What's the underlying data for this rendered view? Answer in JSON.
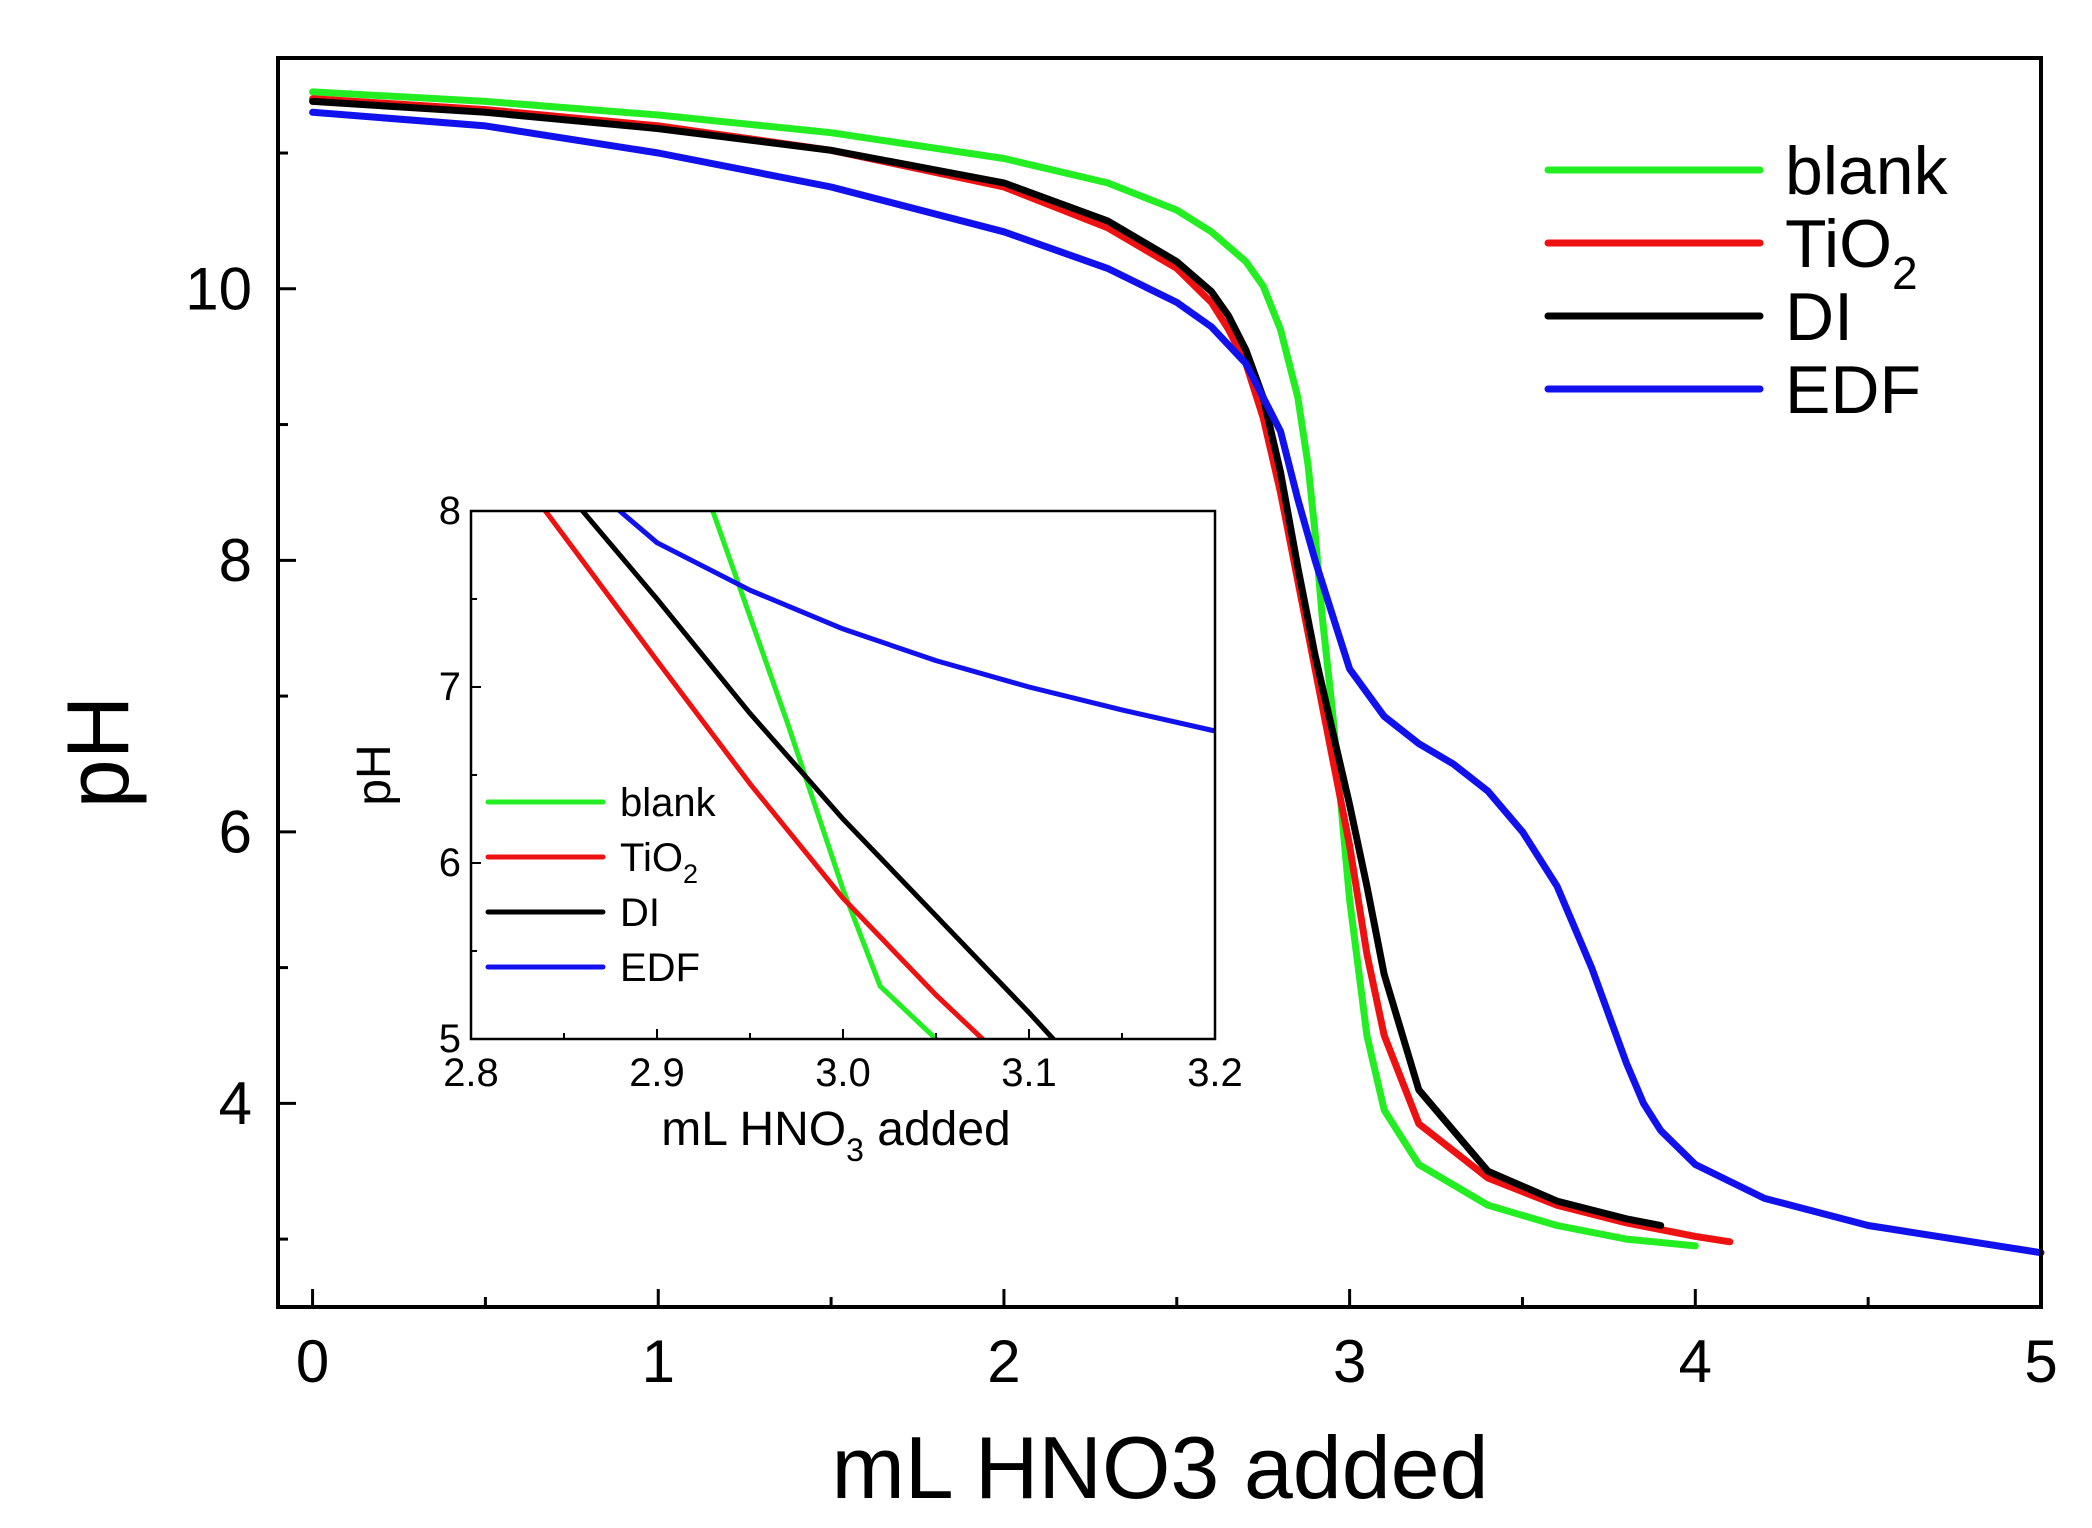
{
  "chart_data": [
    {
      "id": "main",
      "type": "line",
      "xlabel": "mL HNO3 added",
      "ylabel": "pH",
      "xlim": [
        -0.1,
        5.0
      ],
      "ylim": [
        2.5,
        11.7
      ],
      "xticks": [
        0,
        1,
        2,
        3,
        4,
        5
      ],
      "xtick_labels": [
        "0",
        "1",
        "2",
        "3",
        "4",
        "5"
      ],
      "xticks_minor": [
        0.5,
        1.5,
        2.5,
        3.5,
        4.5
      ],
      "yticks": [
        4,
        6,
        8,
        10
      ],
      "ytick_labels": [
        "4",
        "6",
        "8",
        "10"
      ],
      "yticks_minor": [
        3,
        5,
        7,
        9,
        11
      ],
      "legend_position": "top-right",
      "series": [
        {
          "name": "blank",
          "label_main": "blank",
          "label_sub": "",
          "color": "#22ee22",
          "x": [
            0,
            0.5,
            1.0,
            1.5,
            2.0,
            2.3,
            2.5,
            2.6,
            2.7,
            2.75,
            2.8,
            2.85,
            2.88,
            2.9,
            2.92,
            2.95,
            3.0,
            3.05,
            3.1,
            3.2,
            3.4,
            3.6,
            3.8,
            4.0
          ],
          "y": [
            11.45,
            11.38,
            11.28,
            11.15,
            10.96,
            10.78,
            10.58,
            10.42,
            10.2,
            10.02,
            9.7,
            9.2,
            8.7,
            8.2,
            7.6,
            6.9,
            5.5,
            4.5,
            3.95,
            3.55,
            3.25,
            3.1,
            3.0,
            2.95
          ]
        },
        {
          "name": "TiO2",
          "label_main": "TiO",
          "label_sub": "2",
          "color": "#ee1111",
          "x": [
            0,
            0.5,
            1.0,
            1.5,
            2.0,
            2.3,
            2.5,
            2.6,
            2.65,
            2.7,
            2.75,
            2.8,
            2.85,
            2.9,
            2.95,
            3.0,
            3.05,
            3.1,
            3.2,
            3.4,
            3.6,
            3.8,
            4.0,
            4.1
          ],
          "y": [
            11.4,
            11.32,
            11.2,
            11.02,
            10.75,
            10.45,
            10.15,
            9.9,
            9.7,
            9.45,
            9.05,
            8.5,
            7.85,
            7.2,
            6.55,
            5.9,
            5.1,
            4.5,
            3.85,
            3.45,
            3.25,
            3.12,
            3.02,
            2.98
          ]
        },
        {
          "name": "DI",
          "label_main": "DI",
          "label_sub": "",
          "color": "#000000",
          "x": [
            0,
            0.5,
            1.0,
            1.5,
            2.0,
            2.3,
            2.5,
            2.6,
            2.65,
            2.7,
            2.75,
            2.8,
            2.85,
            2.9,
            2.95,
            3.0,
            3.05,
            3.1,
            3.2,
            3.4,
            3.6,
            3.8,
            3.9
          ],
          "y": [
            11.38,
            11.3,
            11.18,
            11.02,
            10.78,
            10.5,
            10.2,
            9.98,
            9.8,
            9.55,
            9.2,
            8.65,
            7.95,
            7.3,
            6.75,
            6.2,
            5.6,
            4.95,
            4.1,
            3.5,
            3.28,
            3.15,
            3.1
          ]
        },
        {
          "name": "EDF",
          "label_main": "EDF",
          "label_sub": "",
          "color": "#1111ee",
          "x": [
            0,
            0.5,
            1.0,
            1.5,
            2.0,
            2.3,
            2.5,
            2.6,
            2.7,
            2.8,
            2.85,
            2.9,
            2.95,
            3.0,
            3.1,
            3.2,
            3.3,
            3.4,
            3.5,
            3.6,
            3.7,
            3.75,
            3.8,
            3.85,
            3.9,
            4.0,
            4.2,
            4.5,
            4.8,
            5.0
          ],
          "y": [
            11.3,
            11.2,
            11.0,
            10.75,
            10.42,
            10.15,
            9.9,
            9.72,
            9.45,
            8.95,
            8.45,
            8.0,
            7.6,
            7.2,
            6.85,
            6.65,
            6.5,
            6.3,
            6.0,
            5.6,
            5.0,
            4.65,
            4.3,
            4.0,
            3.8,
            3.55,
            3.3,
            3.1,
            2.98,
            2.9
          ]
        }
      ]
    },
    {
      "id": "inset",
      "type": "line",
      "xlabel_main": "mL HNO",
      "xlabel_sub": "3",
      "xlabel_tail": " added",
      "ylabel": "pH",
      "xlim": [
        2.8,
        3.2
      ],
      "ylim": [
        5,
        8
      ],
      "xticks": [
        2.8,
        2.9,
        3.0,
        3.1,
        3.2
      ],
      "xtick_labels": [
        "2.8",
        "2.9",
        "3.0",
        "3.1",
        "3.2"
      ],
      "xticks_minor": [
        2.85,
        2.95,
        3.05,
        3.15
      ],
      "yticks": [
        5,
        6,
        7,
        8
      ],
      "ytick_labels": [
        "5",
        "6",
        "7",
        "8"
      ],
      "yticks_minor": [
        5.5,
        6.5,
        7.5
      ],
      "legend_position": "bottom-left",
      "series": [
        {
          "name": "blank",
          "label_main": "blank",
          "label_sub": "",
          "color": "#22ee22",
          "x": [
            2.93,
            2.97,
            3.0,
            3.02,
            3.05
          ],
          "y": [
            8.0,
            6.8,
            5.85,
            5.3,
            5.0
          ]
        },
        {
          "name": "TiO2",
          "label_main": "TiO",
          "label_sub": "2",
          "color": "#ee1111",
          "x": [
            2.84,
            2.9,
            2.95,
            3.0,
            3.05,
            3.075
          ],
          "y": [
            8.0,
            7.15,
            6.45,
            5.8,
            5.25,
            5.0
          ]
        },
        {
          "name": "DI",
          "label_main": "DI",
          "label_sub": "",
          "color": "#000000",
          "x": [
            2.86,
            2.9,
            2.95,
            3.0,
            3.05,
            3.1,
            3.113
          ],
          "y": [
            8.0,
            7.5,
            6.85,
            6.25,
            5.7,
            5.15,
            5.0
          ]
        },
        {
          "name": "EDF",
          "label_main": "EDF",
          "label_sub": "",
          "color": "#1111ee",
          "x": [
            2.88,
            2.9,
            2.95,
            3.0,
            3.05,
            3.1,
            3.15,
            3.2
          ],
          "y": [
            8.0,
            7.82,
            7.55,
            7.33,
            7.15,
            7.0,
            6.87,
            6.75
          ]
        }
      ]
    }
  ]
}
